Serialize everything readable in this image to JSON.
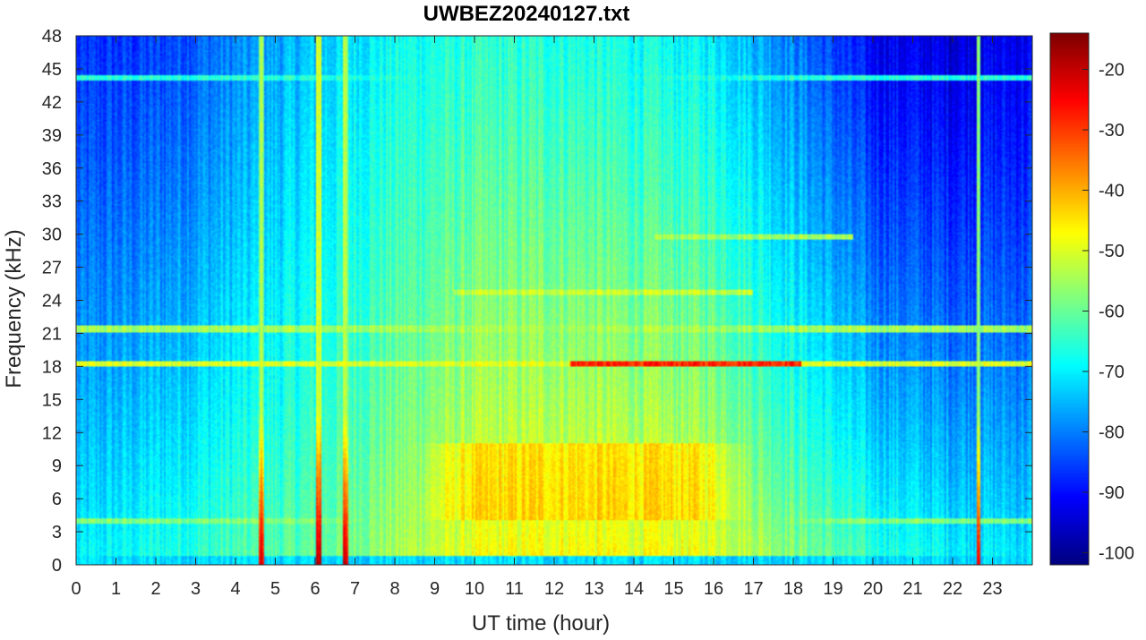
{
  "chart_data": {
    "type": "heatmap",
    "title": "UWBEZ20240127.txt",
    "xlabel": "UT time (hour)",
    "ylabel": "Frequency (kHz)",
    "xlim": [
      0,
      24
    ],
    "ylim": [
      0,
      48
    ],
    "x_ticks": [
      0,
      1,
      2,
      3,
      4,
      5,
      6,
      7,
      8,
      9,
      10,
      11,
      12,
      13,
      14,
      15,
      16,
      17,
      18,
      19,
      20,
      21,
      22,
      23
    ],
    "y_ticks": [
      0,
      3,
      6,
      9,
      12,
      15,
      18,
      21,
      24,
      27,
      30,
      33,
      36,
      39,
      42,
      45,
      48
    ],
    "colorbar": {
      "ticks": [
        -20,
        -30,
        -40,
        -50,
        -60,
        -70,
        -80,
        -90,
        -100
      ],
      "range": [
        -102,
        -14
      ],
      "colormap": "jet"
    },
    "background_level_db": {
      "description_hours": [
        0,
        2,
        4,
        6,
        8,
        10,
        12,
        14,
        16,
        18,
        20,
        22,
        24
      ],
      "low_freq_db": [
        -70,
        -66,
        -62,
        -60,
        -54,
        -48,
        -46,
        -47,
        -48,
        -56,
        -64,
        -68,
        -70
      ],
      "high_freq_db": [
        -88,
        -86,
        -80,
        -74,
        -68,
        -66,
        -66,
        -68,
        -70,
        -80,
        -92,
        -94,
        -92
      ]
    },
    "narrowband_lines": [
      {
        "freq_khz": 18.2,
        "start_hour": 0,
        "end_hour": 24,
        "level_db": -50
      },
      {
        "freq_khz": 18.2,
        "start_hour": 12.4,
        "end_hour": 18.2,
        "level_db": -28
      },
      {
        "freq_khz": 21.4,
        "start_hour": 0,
        "end_hour": 24,
        "level_db": -55
      },
      {
        "freq_khz": 24.8,
        "start_hour": 9.5,
        "end_hour": 17,
        "level_db": -52
      },
      {
        "freq_khz": 29.8,
        "start_hour": 14.5,
        "end_hour": 19.5,
        "level_db": -55
      },
      {
        "freq_khz": 44.2,
        "start_hour": 0,
        "end_hour": 24,
        "level_db": -66
      },
      {
        "freq_khz": 3.9,
        "start_hour": 0,
        "end_hour": 24,
        "level_db": -58
      }
    ],
    "broadband_events": [
      {
        "hour": 4.65,
        "level_db": -55,
        "peak_db": -22
      },
      {
        "hour": 6.1,
        "level_db": -50,
        "peak_db": -18
      },
      {
        "hour": 6.75,
        "level_db": -55,
        "peak_db": -22
      },
      {
        "hour": 22.65,
        "level_db": -55,
        "peak_db": -22
      }
    ],
    "enhanced_band": {
      "freq_khz": [
        4,
        11
      ],
      "start_hour": 8.5,
      "end_hour": 17,
      "level_db": -40
    }
  }
}
